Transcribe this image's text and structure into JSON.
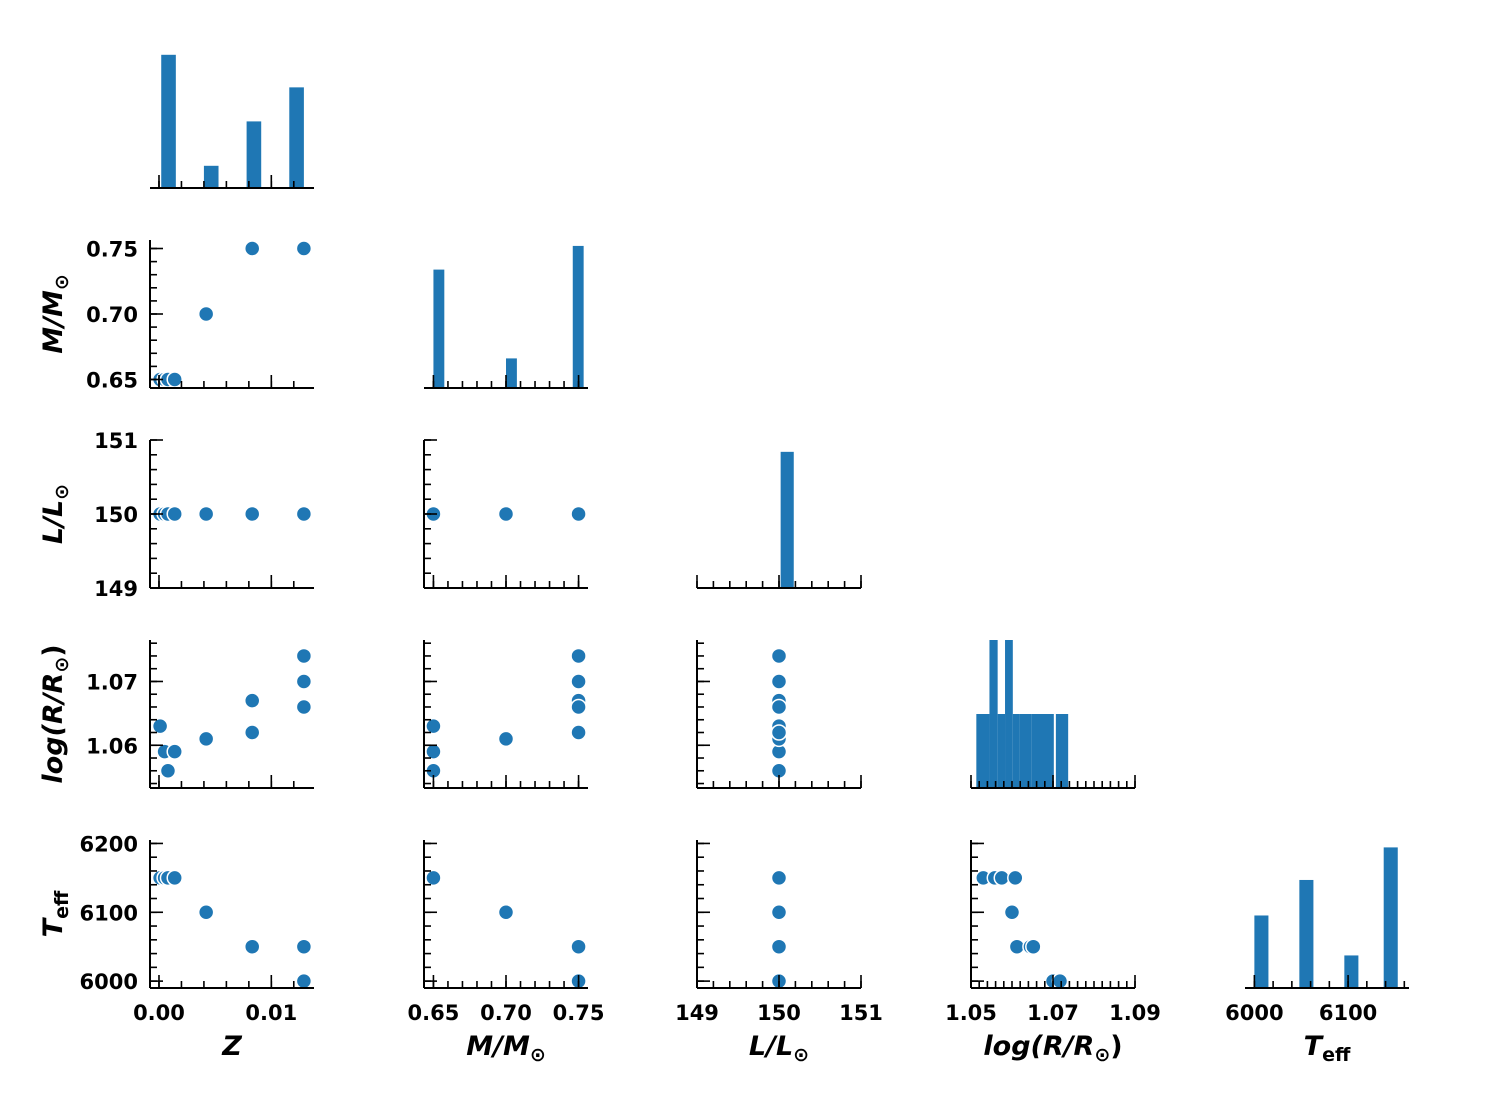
{
  "colors": {
    "accent": "#1f77b4",
    "axis": "#000000"
  },
  "chart_data": {
    "type": "pairplot",
    "variables": [
      {
        "key": "Z",
        "label_main": "Z",
        "label_sub": "",
        "range": [
          -0.0008,
          0.0138
        ],
        "ticks": [
          0.0,
          0.01
        ],
        "tick_labels": [
          "0.00",
          "0.01"
        ],
        "minor_step": 0.002
      },
      {
        "key": "M",
        "label_main": "M/M",
        "label_sub": "⊙",
        "range": [
          0.6435,
          0.7565
        ],
        "ticks": [
          0.65,
          0.7,
          0.75
        ],
        "tick_labels": [
          "0.65",
          "0.70",
          "0.75"
        ],
        "minor_step": 0.01
      },
      {
        "key": "L",
        "label_main": "L/L",
        "label_sub": "⊙",
        "range": [
          149,
          151
        ],
        "ticks": [
          149,
          150,
          151
        ],
        "tick_labels": [
          "149",
          "150",
          "151"
        ],
        "minor_step": 0.2
      },
      {
        "key": "logR",
        "label_main": "log(R/R",
        "label_sub": "⊙",
        "label_suffix": ")",
        "range": [
          1.05,
          1.09
        ],
        "y_range": [
          1.0533,
          1.0765
        ],
        "ticks": [
          1.05,
          1.07,
          1.09
        ],
        "tick_labels": [
          "1.05",
          "1.07",
          "1.09"
        ],
        "y_ticks": [
          1.06,
          1.07
        ],
        "y_tick_labels": [
          "1.06",
          "1.07"
        ],
        "minor_step": 0.002
      },
      {
        "key": "Teff",
        "label_main": "T",
        "label_sub": "eff",
        "range": [
          5990,
          6205
        ],
        "x_range": [
          5990,
          6165
        ],
        "ticks": [
          6000,
          6100,
          6200
        ],
        "tick_labels": [
          "6000",
          "6100",
          "6200"
        ],
        "x_ticks": [
          6000,
          6100
        ],
        "x_tick_labels": [
          "6000",
          "6100"
        ],
        "minor_step": 20
      }
    ],
    "histograms": [
      {
        "var": "Z",
        "bins": [
          [
            0.0002,
            0.0015,
            0.9
          ],
          [
            0.004,
            0.0053,
            0.15
          ],
          [
            0.0078,
            0.0091,
            0.45
          ],
          [
            0.0116,
            0.0129,
            0.68
          ]
        ]
      },
      {
        "var": "M",
        "bins": [
          [
            0.65,
            0.6575,
            0.8
          ],
          [
            0.7,
            0.7075,
            0.2
          ],
          [
            0.746,
            0.7535,
            0.96
          ]
        ]
      },
      {
        "var": "L",
        "bins": [
          [
            150.02,
            150.18,
            0.92
          ]
        ]
      },
      {
        "var": "logR",
        "bins": [
          [
            1.0513,
            1.0545,
            0.5
          ],
          [
            1.0545,
            1.0565,
            1.0
          ],
          [
            1.0565,
            1.0583,
            0.5
          ],
          [
            1.0583,
            1.0602,
            1.0
          ],
          [
            1.0602,
            1.0618,
            0.5
          ],
          [
            1.0618,
            1.0648,
            0.5
          ],
          [
            1.0648,
            1.0702,
            0.5
          ],
          [
            1.0707,
            1.0737,
            0.5
          ]
        ]
      },
      {
        "var": "Teff",
        "bins": [
          [
            6000,
            6015,
            0.49
          ],
          [
            6048,
            6063,
            0.73
          ],
          [
            6096,
            6111,
            0.22
          ],
          [
            6138,
            6153,
            0.95
          ]
        ]
      }
    ],
    "points": [
      {
        "Z": 0.0001,
        "M": 0.65,
        "L": 150,
        "logR": 1.063,
        "Teff": 6150
      },
      {
        "Z": 0.0005,
        "M": 0.65,
        "L": 150,
        "logR": 1.059,
        "Teff": 6150
      },
      {
        "Z": 0.0008,
        "M": 0.65,
        "L": 150,
        "logR": 1.056,
        "Teff": 6150
      },
      {
        "Z": 0.0014,
        "M": 0.65,
        "L": 150,
        "logR": 1.059,
        "Teff": 6150
      },
      {
        "Z": 0.0042,
        "M": 0.7,
        "L": 150,
        "logR": 1.061,
        "Teff": 6100
      },
      {
        "Z": 0.0083,
        "M": 0.75,
        "L": 150,
        "logR": 1.067,
        "Teff": 6050
      },
      {
        "Z": 0.0083,
        "M": 0.75,
        "L": 150,
        "logR": 1.062,
        "Teff": 6050
      },
      {
        "Z": 0.0129,
        "M": 0.75,
        "L": 150,
        "logR": 1.066,
        "Teff": 6050
      },
      {
        "Z": 0.0129,
        "M": 0.75,
        "L": 150,
        "logR": 1.07,
        "Teff": 6000
      },
      {
        "Z": 0.0129,
        "M": 0.75,
        "L": 150,
        "logR": 1.074,
        "Teff": 6000
      }
    ],
    "logR_vs_Teff_points": [
      [
        1.053,
        6150
      ],
      [
        1.0558,
        6150
      ],
      [
        1.0575,
        6150
      ],
      [
        1.0608,
        6150
      ],
      [
        1.06,
        6100
      ],
      [
        1.0612,
        6050
      ],
      [
        1.0645,
        6050
      ],
      [
        1.0652,
        6050
      ],
      [
        1.07,
        6000
      ],
      [
        1.0717,
        6000
      ]
    ]
  }
}
